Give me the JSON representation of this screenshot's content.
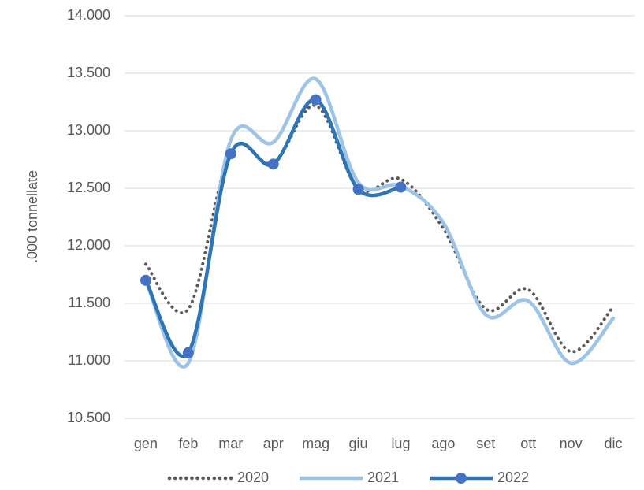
{
  "chart_data": {
    "type": "line",
    "y_label": ".000 tonnellate",
    "categories": [
      "gen",
      "feb",
      "mar",
      "apr",
      "mag",
      "giu",
      "lug",
      "ago",
      "set",
      "ott",
      "nov",
      "dic"
    ],
    "series": [
      {
        "name": "2020",
        "color": "#595959",
        "style": "dotted",
        "values": [
          11840,
          11450,
          12820,
          12720,
          13220,
          12500,
          12580,
          12150,
          11450,
          11620,
          11080,
          11470
        ]
      },
      {
        "name": "2021",
        "color": "#9dc3e6",
        "style": "solid",
        "values": [
          11700,
          10980,
          12920,
          12900,
          13450,
          12550,
          12520,
          12200,
          11400,
          11520,
          10980,
          11370
        ]
      },
      {
        "name": "2022",
        "color": "#2e75b6",
        "style": "solid",
        "marker_color": "#4472c4",
        "values": [
          11700,
          11070,
          12800,
          12710,
          13270,
          12490,
          12510,
          null,
          null,
          null,
          null,
          null
        ]
      }
    ],
    "ylim": [
      10500,
      14000
    ],
    "yticks": [
      {
        "value": 10500,
        "label": "10.500"
      },
      {
        "value": 11000,
        "label": "11.000"
      },
      {
        "value": 11500,
        "label": "11.500"
      },
      {
        "value": 12000,
        "label": "12.000"
      },
      {
        "value": 12500,
        "label": "12.500"
      },
      {
        "value": 13000,
        "label": "13.000"
      },
      {
        "value": 13500,
        "label": "13.500"
      },
      {
        "value": 14000,
        "label": "14.000"
      }
    ],
    "grid": true,
    "smooth": true,
    "legend": "bottom"
  }
}
